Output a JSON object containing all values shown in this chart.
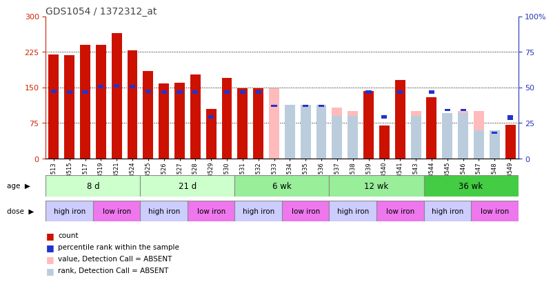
{
  "title": "GDS1054 / 1372312_at",
  "samples": [
    "GSM33513",
    "GSM33515",
    "GSM33517",
    "GSM33519",
    "GSM33521",
    "GSM33524",
    "GSM33525",
    "GSM33526",
    "GSM33527",
    "GSM33528",
    "GSM33529",
    "GSM33530",
    "GSM33531",
    "GSM33532",
    "GSM33533",
    "GSM33534",
    "GSM33535",
    "GSM33536",
    "GSM33537",
    "GSM33538",
    "GSM33539",
    "GSM33540",
    "GSM33541",
    "GSM33543",
    "GSM33544",
    "GSM33545",
    "GSM33546",
    "GSM33547",
    "GSM33548",
    "GSM33549"
  ],
  "count": [
    220,
    218,
    240,
    240,
    265,
    228,
    185,
    158,
    160,
    178,
    105,
    170,
    148,
    148,
    null,
    null,
    null,
    null,
    null,
    null,
    143,
    70,
    165,
    null,
    130,
    null,
    null,
    null,
    null,
    72
  ],
  "pct_rank_left": [
    142,
    140,
    140,
    152,
    153,
    152,
    142,
    140,
    140,
    140,
    88,
    140,
    140,
    140,
    null,
    null,
    null,
    null,
    null,
    null,
    140,
    88,
    140,
    null,
    140,
    null,
    null,
    null,
    null,
    88
  ],
  "absent_value": [
    null,
    null,
    null,
    null,
    null,
    null,
    null,
    null,
    null,
    null,
    null,
    null,
    null,
    null,
    148,
    92,
    108,
    108,
    108,
    100,
    null,
    null,
    null,
    100,
    null,
    95,
    100,
    100,
    42,
    null
  ],
  "absent_pct_right": [
    null,
    null,
    null,
    null,
    null,
    null,
    null,
    null,
    null,
    null,
    null,
    null,
    null,
    null,
    null,
    38,
    38,
    38,
    30,
    30,
    null,
    null,
    null,
    30,
    null,
    32,
    32,
    20,
    20,
    null
  ],
  "absent_pct_right_sq": [
    null,
    null,
    null,
    null,
    null,
    null,
    null,
    null,
    null,
    null,
    null,
    null,
    null,
    null,
    37,
    null,
    37,
    37,
    null,
    null,
    null,
    null,
    null,
    null,
    null,
    34,
    34,
    null,
    18,
    28
  ],
  "age_groups": [
    {
      "label": "8 d",
      "start": 0,
      "end": 6,
      "color": "#ccffcc"
    },
    {
      "label": "21 d",
      "start": 6,
      "end": 12,
      "color": "#ccffcc"
    },
    {
      "label": "6 wk",
      "start": 12,
      "end": 18,
      "color": "#99ee99"
    },
    {
      "label": "12 wk",
      "start": 18,
      "end": 24,
      "color": "#99ee99"
    },
    {
      "label": "36 wk",
      "start": 24,
      "end": 30,
      "color": "#44cc44"
    }
  ],
  "dose_groups": [
    {
      "label": "high iron",
      "start": 0,
      "end": 3,
      "color": "#ccccff"
    },
    {
      "label": "low iron",
      "start": 3,
      "end": 6,
      "color": "#ee77ee"
    },
    {
      "label": "high iron",
      "start": 6,
      "end": 9,
      "color": "#ccccff"
    },
    {
      "label": "low iron",
      "start": 9,
      "end": 12,
      "color": "#ee77ee"
    },
    {
      "label": "high iron",
      "start": 12,
      "end": 15,
      "color": "#ccccff"
    },
    {
      "label": "low iron",
      "start": 15,
      "end": 18,
      "color": "#ee77ee"
    },
    {
      "label": "high iron",
      "start": 18,
      "end": 21,
      "color": "#ccccff"
    },
    {
      "label": "low iron",
      "start": 21,
      "end": 24,
      "color": "#ee77ee"
    },
    {
      "label": "high iron",
      "start": 24,
      "end": 27,
      "color": "#ccccff"
    },
    {
      "label": "low iron",
      "start": 27,
      "end": 30,
      "color": "#ee77ee"
    }
  ],
  "ylim_left": [
    0,
    300
  ],
  "ylim_right": [
    0,
    100
  ],
  "yticks_left": [
    0,
    75,
    150,
    225,
    300
  ],
  "yticks_right": [
    0,
    25,
    50,
    75,
    100
  ],
  "bar_color_red": "#cc1100",
  "bar_color_blue": "#2233cc",
  "bar_color_pink": "#ffbbbb",
  "bar_color_lightblue": "#bbccdd",
  "left_axis_color": "#cc2200",
  "right_axis_color": "#2233bb",
  "bg_color": "#ffffff"
}
